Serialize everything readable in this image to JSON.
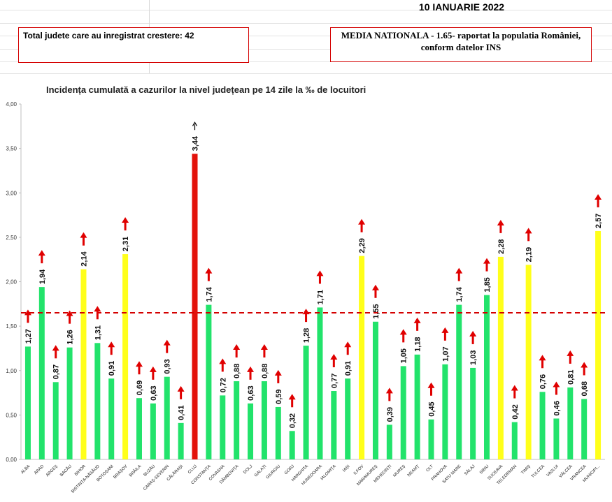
{
  "header": {
    "date": "10 IANUARIE 2022",
    "total_box": "Total judete care au inregistrat crestere: 42",
    "media_line1": "MEDIA NATIONALA - 1.65-  raportat la populatia României,",
    "media_line2": "conform datelor INS"
  },
  "colors": {
    "normal": "#22e36b",
    "high": "#ffff1a",
    "max": "#e3120b",
    "arrow": "#e00000",
    "average_line": "#d40000"
  },
  "chart_data": {
    "type": "bar",
    "title": "Incidența cumulată a cazurilor la nivel județean pe 14 zile la ‰ de locuitori",
    "xlabel": "",
    "ylabel": "",
    "ylim": [
      0,
      4
    ],
    "yticks": [
      "0,00",
      "0,50",
      "1,00",
      "1,50",
      "2,00",
      "2,50",
      "3,00",
      "3,50",
      "4,00"
    ],
    "reference_line": 1.65,
    "grid": false,
    "categories": [
      "ALBA",
      "ARAD",
      "ARGEȘ",
      "BACĂU",
      "BIHOR",
      "BISTRIȚA-NĂSĂUD",
      "BOTOȘANI",
      "BRAȘOV",
      "BRĂILA",
      "BUZĂU",
      "CARAȘ-SEVERIN",
      "CĂLĂRAȘI",
      "CLUJ",
      "CONSTANȚA",
      "COVASNA",
      "DÂMBOVIȚA",
      "DOLJ",
      "GALAȚI",
      "GIURGIU",
      "GORJ",
      "HARGHITA",
      "HUNEDOARA",
      "IALOMIȚA",
      "IAȘI",
      "ILFOV",
      "MARAMUREȘ",
      "MEHEDINȚI",
      "MUREȘ",
      "NEAMȚ",
      "OLT",
      "PRAHOVA",
      "SATU MARE",
      "SĂLAJ",
      "SIBIU",
      "SUCEAVA",
      "TELEORMAN",
      "TIMIȘ",
      "TULCEA",
      "VASLUI",
      "VÂLCEA",
      "VRANCEA",
      "MUNICIPIUL BUCUREȘTI"
    ],
    "values": [
      1.27,
      1.94,
      0.87,
      1.26,
      2.14,
      1.31,
      0.91,
      2.31,
      0.69,
      0.63,
      0.93,
      0.41,
      3.44,
      1.74,
      0.72,
      0.88,
      0.63,
      0.88,
      0.59,
      0.32,
      1.28,
      1.71,
      0.77,
      0.91,
      2.29,
      1.55,
      0.39,
      1.05,
      1.18,
      0.45,
      1.07,
      1.74,
      1.03,
      1.85,
      2.28,
      0.42,
      2.19,
      0.76,
      0.46,
      0.81,
      0.68,
      2.57
    ],
    "labels": [
      "1,27",
      "1,94",
      "0,87",
      "1,26",
      "2,14",
      "1,31",
      "0,91",
      "2,31",
      "0,69",
      "0,63",
      "0,93",
      "0,41",
      "3,44",
      "1,74",
      "0,72",
      "0,88",
      "0,63",
      "0,88",
      "0,59",
      "0,32",
      "1,28",
      "1,71",
      "0,77",
      "0,91",
      "2,29",
      "1,55",
      "0,39",
      "1,05",
      "1,18",
      "0,45",
      "1,07",
      "1,74",
      "1,03",
      "1,85",
      "2,28",
      "0,42",
      "2,19",
      "0,76",
      "0,46",
      "0,81",
      "0,68",
      "2,57"
    ],
    "tick_labels": [
      "ALBA",
      "ARAD",
      "ARGEȘ",
      "BACĂU",
      "BIHOR",
      "BISTRIȚA-NĂSĂUD",
      "BOTOȘANI",
      "BRAȘOV",
      "BRĂILA",
      "BUZĂU",
      "CARAȘ-SEVERIN",
      "CĂLĂRAȘI",
      "CLUJ",
      "CONSTANȚA",
      "COVASNA",
      "DÂMBOVIȚA",
      "DOLJ",
      "GALAȚI",
      "GIURGIU",
      "GORJ",
      "HARGHITA",
      "HUNEDOARA",
      "IALOMIȚA",
      "IAȘI",
      "ILFOV",
      "MARAMUREȘ",
      "MEHEDINȚI",
      "MUREȘ",
      "NEAMȚ",
      "OLT",
      "PRAHOVA",
      "SATU MARE",
      "SĂLAJ",
      "SIBIU",
      "SUCEAVA",
      "TELEORMAN",
      "TIMIȘ",
      "TULCEA",
      "VASLUI",
      "VÂLCEA",
      "VRANCEA",
      "MUNICIPI..."
    ],
    "bar_color_class": [
      "normal",
      "normal",
      "normal",
      "normal",
      "high",
      "normal",
      "normal",
      "high",
      "normal",
      "normal",
      "normal",
      "normal",
      "max",
      "normal",
      "normal",
      "normal",
      "normal",
      "normal",
      "normal",
      "normal",
      "normal",
      "normal",
      "normal",
      "normal",
      "high",
      "normal",
      "normal",
      "normal",
      "normal",
      "normal",
      "normal",
      "normal",
      "normal",
      "normal",
      "high",
      "normal",
      "high",
      "normal",
      "normal",
      "normal",
      "normal",
      "high"
    ]
  }
}
